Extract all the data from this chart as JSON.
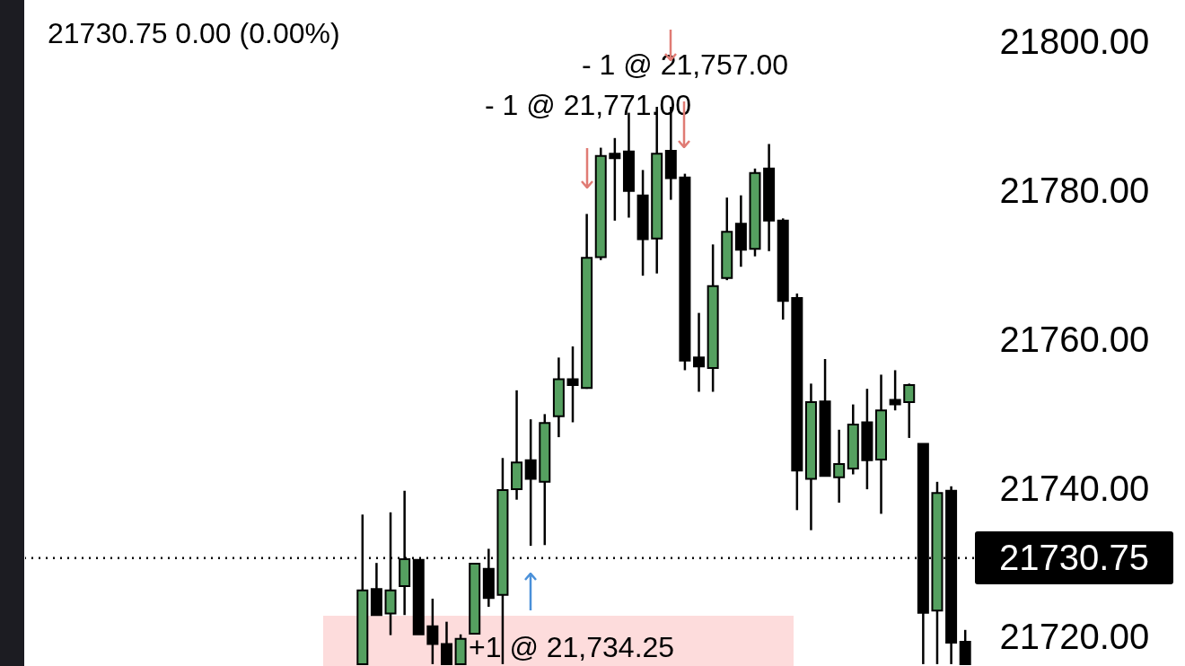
{
  "chart_data": {
    "type": "candlestick",
    "categories": [
      null,
      null,
      null,
      null,
      null,
      null,
      null,
      null,
      null,
      null,
      null,
      null,
      null,
      null,
      null,
      null,
      null,
      null,
      null,
      null,
      null,
      null,
      null,
      null,
      null,
      null,
      null,
      null,
      null,
      null,
      null,
      null,
      null,
      null,
      null,
      null,
      null,
      null,
      null,
      null,
      null,
      null,
      null,
      null
    ],
    "ohlc": [
      [
        21716.5,
        21736.6,
        21716.5,
        21726.4
      ],
      [
        21726.6,
        21730.1,
        21723.1,
        21723.1
      ],
      [
        21723.3,
        21736.9,
        21720.4,
        21726.4
      ],
      [
        21727.0,
        21739.8,
        21723.1,
        21730.6
      ],
      [
        21730.5,
        21730.5,
        21720.5,
        21720.5
      ],
      [
        21721.6,
        21725.3,
        21716.5,
        21719.2
      ],
      [
        21719.2,
        21722.2,
        21716.5,
        21716.5
      ],
      [
        21716.5,
        21720.5,
        21716.5,
        21719.9
      ],
      [
        21720.6,
        21730.1,
        21720.6,
        21730.0
      ],
      [
        21729.3,
        21732.0,
        21724.2,
        21725.4
      ],
      [
        21725.8,
        21744.2,
        21716.5,
        21739.9
      ],
      [
        21740.0,
        21753.3,
        21738.6,
        21743.6
      ],
      [
        21743.9,
        21749.4,
        21732.4,
        21741.4
      ],
      [
        21741.0,
        21750.1,
        21732.5,
        21748.9
      ],
      [
        21749.8,
        21757.7,
        21747.0,
        21754.8
      ],
      [
        21754.8,
        21759.2,
        21749.0,
        21754.0
      ],
      [
        21753.6,
        21777.0,
        21753.5,
        21771.1
      ],
      [
        21771.2,
        21785.9,
        21770.8,
        21784.8
      ],
      [
        21785.1,
        21787.2,
        21776.1,
        21784.5
      ],
      [
        21785.4,
        21790.6,
        21776.5,
        21780.1
      ],
      [
        21779.5,
        21782.9,
        21768.7,
        21773.6
      ],
      [
        21773.7,
        21791.4,
        21769.0,
        21785.1
      ],
      [
        21785.5,
        21791.4,
        21778.9,
        21781.8
      ],
      [
        21781.9,
        21782.4,
        21756.0,
        21757.3
      ],
      [
        21757.7,
        21763.7,
        21753.1,
        21756.5
      ],
      [
        21756.3,
        21772.9,
        21753.1,
        21767.3
      ],
      [
        21768.4,
        21779.2,
        21768.1,
        21774.6
      ],
      [
        21775.7,
        21779.5,
        21769.9,
        21772.2
      ],
      [
        21772.3,
        21783.1,
        21771.3,
        21782.5
      ],
      [
        21783.1,
        21786.4,
        21772.0,
        21776.1
      ],
      [
        21776.1,
        21776.4,
        21762.8,
        21765.3
      ],
      [
        21765.7,
        21766.3,
        21737.2,
        21742.5
      ],
      [
        21741.4,
        21754.2,
        21734.5,
        21751.7
      ],
      [
        21751.8,
        21757.5,
        21741.8,
        21741.8
      ],
      [
        21741.6,
        21748.0,
        21738.2,
        21743.4
      ],
      [
        21742.8,
        21751.4,
        21742.0,
        21748.7
      ],
      [
        21749.0,
        21753.5,
        21740.0,
        21743.9
      ],
      [
        21744.0,
        21755.4,
        21736.7,
        21750.6
      ],
      [
        21752.0,
        21756.0,
        21750.6,
        21751.4
      ],
      [
        21751.7,
        21754.2,
        21746.9,
        21754.0
      ],
      [
        21746.1,
        21746.1,
        21716.5,
        21723.4
      ],
      [
        21723.7,
        21741.0,
        21716.5,
        21739.5
      ],
      [
        21739.8,
        21740.4,
        21716.5,
        21719.4
      ],
      [
        21719.5,
        21721.1,
        21716.5,
        21716.5
      ]
    ],
    "colors": [
      "#55a060",
      "#000000",
      "#55a060",
      "#55a060",
      "#000000",
      "#000000",
      "#000000",
      "#55a060",
      "#55a060",
      "#000000",
      "#55a060",
      "#55a060",
      "#000000",
      "#55a060",
      "#55a060",
      "#000000",
      "#55a060",
      "#55a060",
      "#000000",
      "#000000",
      "#000000",
      "#55a060",
      "#000000",
      "#000000",
      "#000000",
      "#55a060",
      "#55a060",
      "#000000",
      "#55a060",
      "#000000",
      "#000000",
      "#000000",
      "#55a060",
      "#000000",
      "#55a060",
      "#55a060",
      "#000000",
      "#55a060",
      "#000000",
      "#55a060",
      "#000000",
      "#55a060",
      "#000000",
      "#000000"
    ],
    "ylim": [
      21716.25,
      21805.75
    ],
    "yticks": [
      {
        "value": 21720,
        "label": "21720.00"
      },
      {
        "value": 21740,
        "label": "21740.00"
      },
      {
        "value": 21760,
        "label": "21760.00"
      },
      {
        "value": 21780,
        "label": "21780.00"
      },
      {
        "value": 21800,
        "label": "21800.00"
      }
    ],
    "ref_lines": [
      {
        "axis": "y",
        "value": 21730.75,
        "label": "21730.75",
        "line_style": "dotted",
        "color": "#000000"
      }
    ],
    "bands": [
      {
        "axis": "y",
        "from": 21716.25,
        "to": 21723,
        "color": "#fddcdc"
      }
    ],
    "annotations": [
      "21730.75  0.00 (0.00%)",
      "- 1 @ 21,757.00",
      "- 1 @ 21,771.00",
      "+1 @ 21,734.25"
    ]
  }
}
